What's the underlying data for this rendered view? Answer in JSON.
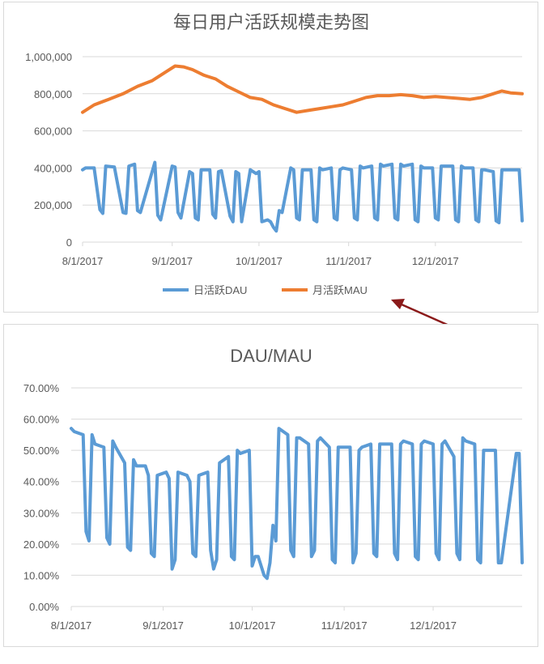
{
  "colors": {
    "dau": "#5b9bd5",
    "mau": "#ed7d31",
    "ratio": "#5b9bd5",
    "arrow": "#8b1a1a",
    "grid": "#d9d9d9"
  },
  "chart_data": [
    {
      "type": "line",
      "title": "每日用户活跃规模走势图",
      "x_start": "2017-08-01",
      "x_end": "2017-12-31",
      "x_ticks": [
        "8/1/2017",
        "9/1/2017",
        "10/1/2017",
        "11/1/2017",
        "12/1/2017"
      ],
      "y_ticks": [
        "0",
        "200,000",
        "400,000",
        "600,000",
        "800,000",
        "1,000,000"
      ],
      "ylim": [
        0,
        1000000
      ],
      "legend": {
        "position": "bottom",
        "entries": [
          "日活跃DAU",
          "月活跃MAU"
        ]
      },
      "series": [
        {
          "name": "日活跃DAU",
          "x": [
            "2017-08-01",
            "2017-08-02",
            "2017-08-05",
            "2017-08-07",
            "2017-08-08",
            "2017-08-09",
            "2017-08-12",
            "2017-08-15",
            "2017-08-16",
            "2017-08-17",
            "2017-08-19",
            "2017-08-20",
            "2017-08-21",
            "2017-08-26",
            "2017-08-27",
            "2017-08-28",
            "2017-09-01",
            "2017-09-02",
            "2017-09-03",
            "2017-09-04",
            "2017-09-07",
            "2017-09-08",
            "2017-09-09",
            "2017-09-10",
            "2017-09-11",
            "2017-09-14",
            "2017-09-15",
            "2017-09-16",
            "2017-09-17",
            "2017-09-18",
            "2017-09-21",
            "2017-09-22",
            "2017-09-23",
            "2017-09-24",
            "2017-09-25",
            "2017-09-28",
            "2017-09-30",
            "2017-10-01",
            "2017-10-02",
            "2017-10-04",
            "2017-10-05",
            "2017-10-06",
            "2017-10-07",
            "2017-10-08",
            "2017-10-09",
            "2017-10-12",
            "2017-10-13",
            "2017-10-14",
            "2017-10-15",
            "2017-10-16",
            "2017-10-19",
            "2017-10-20",
            "2017-10-21",
            "2017-10-22",
            "2017-10-23",
            "2017-10-26",
            "2017-10-27",
            "2017-10-28",
            "2017-10-29",
            "2017-10-30",
            "2017-11-02",
            "2017-11-03",
            "2017-11-04",
            "2017-11-05",
            "2017-11-06",
            "2017-11-09",
            "2017-11-10",
            "2017-11-11",
            "2017-11-12",
            "2017-11-13",
            "2017-11-16",
            "2017-11-17",
            "2017-11-18",
            "2017-11-19",
            "2017-11-20",
            "2017-11-23",
            "2017-11-24",
            "2017-11-25",
            "2017-11-26",
            "2017-11-27",
            "2017-11-30",
            "2017-12-01",
            "2017-12-02",
            "2017-12-03",
            "2017-12-04",
            "2017-12-07",
            "2017-12-08",
            "2017-12-09",
            "2017-12-10",
            "2017-12-11",
            "2017-12-14",
            "2017-12-15",
            "2017-12-16",
            "2017-12-17",
            "2017-12-18",
            "2017-12-21",
            "2017-12-22",
            "2017-12-23",
            "2017-12-24",
            "2017-12-25",
            "2017-12-30",
            "2017-12-31"
          ],
          "values": [
            390000,
            400000,
            400000,
            175000,
            155000,
            410000,
            405000,
            160000,
            155000,
            410000,
            420000,
            170000,
            160000,
            430000,
            145000,
            120000,
            410000,
            405000,
            160000,
            130000,
            380000,
            370000,
            130000,
            120000,
            390000,
            390000,
            150000,
            130000,
            380000,
            385000,
            140000,
            110000,
            380000,
            370000,
            110000,
            390000,
            370000,
            380000,
            110000,
            120000,
            110000,
            80000,
            60000,
            170000,
            160000,
            400000,
            390000,
            130000,
            120000,
            390000,
            390000,
            120000,
            110000,
            400000,
            390000,
            400000,
            130000,
            120000,
            390000,
            400000,
            390000,
            130000,
            120000,
            410000,
            400000,
            410000,
            130000,
            120000,
            420000,
            410000,
            420000,
            130000,
            120000,
            420000,
            410000,
            420000,
            120000,
            110000,
            410000,
            400000,
            400000,
            130000,
            120000,
            410000,
            410000,
            410000,
            120000,
            110000,
            410000,
            400000,
            400000,
            120000,
            110000,
            390000,
            390000,
            380000,
            115000,
            105000,
            390000,
            390000,
            390000,
            115000
          ]
        },
        {
          "name": "月活跃MAU",
          "x": [
            "2017-08-01",
            "2017-08-05",
            "2017-08-10",
            "2017-08-15",
            "2017-08-20",
            "2017-08-25",
            "2017-08-30",
            "2017-09-02",
            "2017-09-05",
            "2017-09-08",
            "2017-09-12",
            "2017-09-16",
            "2017-09-20",
            "2017-09-24",
            "2017-09-28",
            "2017-10-02",
            "2017-10-06",
            "2017-10-10",
            "2017-10-14",
            "2017-10-18",
            "2017-10-22",
            "2017-10-26",
            "2017-10-30",
            "2017-11-03",
            "2017-11-07",
            "2017-11-11",
            "2017-11-15",
            "2017-11-19",
            "2017-11-23",
            "2017-11-27",
            "2017-12-01",
            "2017-12-05",
            "2017-12-09",
            "2017-12-13",
            "2017-12-17",
            "2017-12-21",
            "2017-12-24",
            "2017-12-27",
            "2017-12-31"
          ],
          "values": [
            700000,
            740000,
            770000,
            800000,
            840000,
            870000,
            920000,
            950000,
            945000,
            930000,
            900000,
            880000,
            840000,
            810000,
            780000,
            770000,
            740000,
            720000,
            700000,
            710000,
            720000,
            730000,
            740000,
            760000,
            780000,
            790000,
            790000,
            795000,
            790000,
            780000,
            785000,
            780000,
            775000,
            770000,
            780000,
            800000,
            815000,
            805000,
            800000
          ]
        }
      ]
    },
    {
      "type": "line",
      "title": "DAU/MAU",
      "x_start": "2017-08-01",
      "x_end": "2017-12-31",
      "x_ticks": [
        "8/1/2017",
        "9/1/2017",
        "10/1/2017",
        "11/1/2017",
        "12/1/2017"
      ],
      "y_ticks": [
        "0.00%",
        "10.00%",
        "20.00%",
        "30.00%",
        "40.00%",
        "50.00%",
        "60.00%",
        "70.00%"
      ],
      "ylim": [
        0,
        70
      ],
      "series": [
        {
          "x": [
            "2017-08-01",
            "2017-08-02",
            "2017-08-05",
            "2017-08-06",
            "2017-08-07",
            "2017-08-08",
            "2017-08-09",
            "2017-08-12",
            "2017-08-13",
            "2017-08-14",
            "2017-08-15",
            "2017-08-16",
            "2017-08-19",
            "2017-08-20",
            "2017-08-21",
            "2017-08-22",
            "2017-08-23",
            "2017-08-26",
            "2017-08-27",
            "2017-08-28",
            "2017-08-29",
            "2017-08-30",
            "2017-09-02",
            "2017-09-03",
            "2017-09-04",
            "2017-09-05",
            "2017-09-06",
            "2017-09-09",
            "2017-09-10",
            "2017-09-11",
            "2017-09-12",
            "2017-09-13",
            "2017-09-16",
            "2017-09-17",
            "2017-09-18",
            "2017-09-19",
            "2017-09-20",
            "2017-09-23",
            "2017-09-24",
            "2017-09-25",
            "2017-09-26",
            "2017-09-27",
            "2017-09-30",
            "2017-10-01",
            "2017-10-02",
            "2017-10-03",
            "2017-10-05",
            "2017-10-06",
            "2017-10-07",
            "2017-10-08",
            "2017-10-09",
            "2017-10-10",
            "2017-10-13",
            "2017-10-14",
            "2017-10-15",
            "2017-10-16",
            "2017-10-17",
            "2017-10-20",
            "2017-10-21",
            "2017-10-22",
            "2017-10-23",
            "2017-10-24",
            "2017-10-27",
            "2017-10-28",
            "2017-10-29",
            "2017-10-30",
            "2017-10-31",
            "2017-11-03",
            "2017-11-04",
            "2017-11-05",
            "2017-11-06",
            "2017-11-07",
            "2017-11-10",
            "2017-11-11",
            "2017-11-12",
            "2017-11-13",
            "2017-11-14",
            "2017-11-17",
            "2017-11-18",
            "2017-11-19",
            "2017-11-20",
            "2017-11-21",
            "2017-11-24",
            "2017-11-25",
            "2017-11-26",
            "2017-11-27",
            "2017-11-28",
            "2017-12-01",
            "2017-12-02",
            "2017-12-03",
            "2017-12-04",
            "2017-12-05",
            "2017-12-08",
            "2017-12-09",
            "2017-12-10",
            "2017-12-11",
            "2017-12-12",
            "2017-12-15",
            "2017-12-16",
            "2017-12-17",
            "2017-12-18",
            "2017-12-19",
            "2017-12-22",
            "2017-12-23",
            "2017-12-24",
            "2017-12-29",
            "2017-12-30",
            "2017-12-31"
          ],
          "values": [
            57,
            56,
            55,
            24,
            21,
            55,
            52,
            51,
            22,
            20,
            53,
            51,
            46,
            19,
            18,
            47,
            45,
            45,
            42,
            17,
            16,
            42,
            43,
            41,
            12,
            15,
            43,
            42,
            40,
            17,
            16,
            42,
            43,
            18,
            12,
            15,
            46,
            48,
            16,
            15,
            50,
            49,
            50,
            13,
            16,
            16,
            10,
            9,
            14,
            26,
            21,
            57,
            55,
            18,
            16,
            54,
            54,
            52,
            16,
            18,
            53,
            54,
            51,
            15,
            14,
            51,
            51,
            51,
            14,
            17,
            50,
            51,
            52,
            17,
            16,
            52,
            52,
            52,
            17,
            15,
            52,
            53,
            52,
            16,
            15,
            52,
            53,
            52,
            17,
            15,
            52,
            53,
            48,
            17,
            15,
            54,
            53,
            52,
            15,
            14,
            50,
            50,
            50,
            14,
            14,
            49,
            49,
            14
          ]
        }
      ]
    }
  ]
}
